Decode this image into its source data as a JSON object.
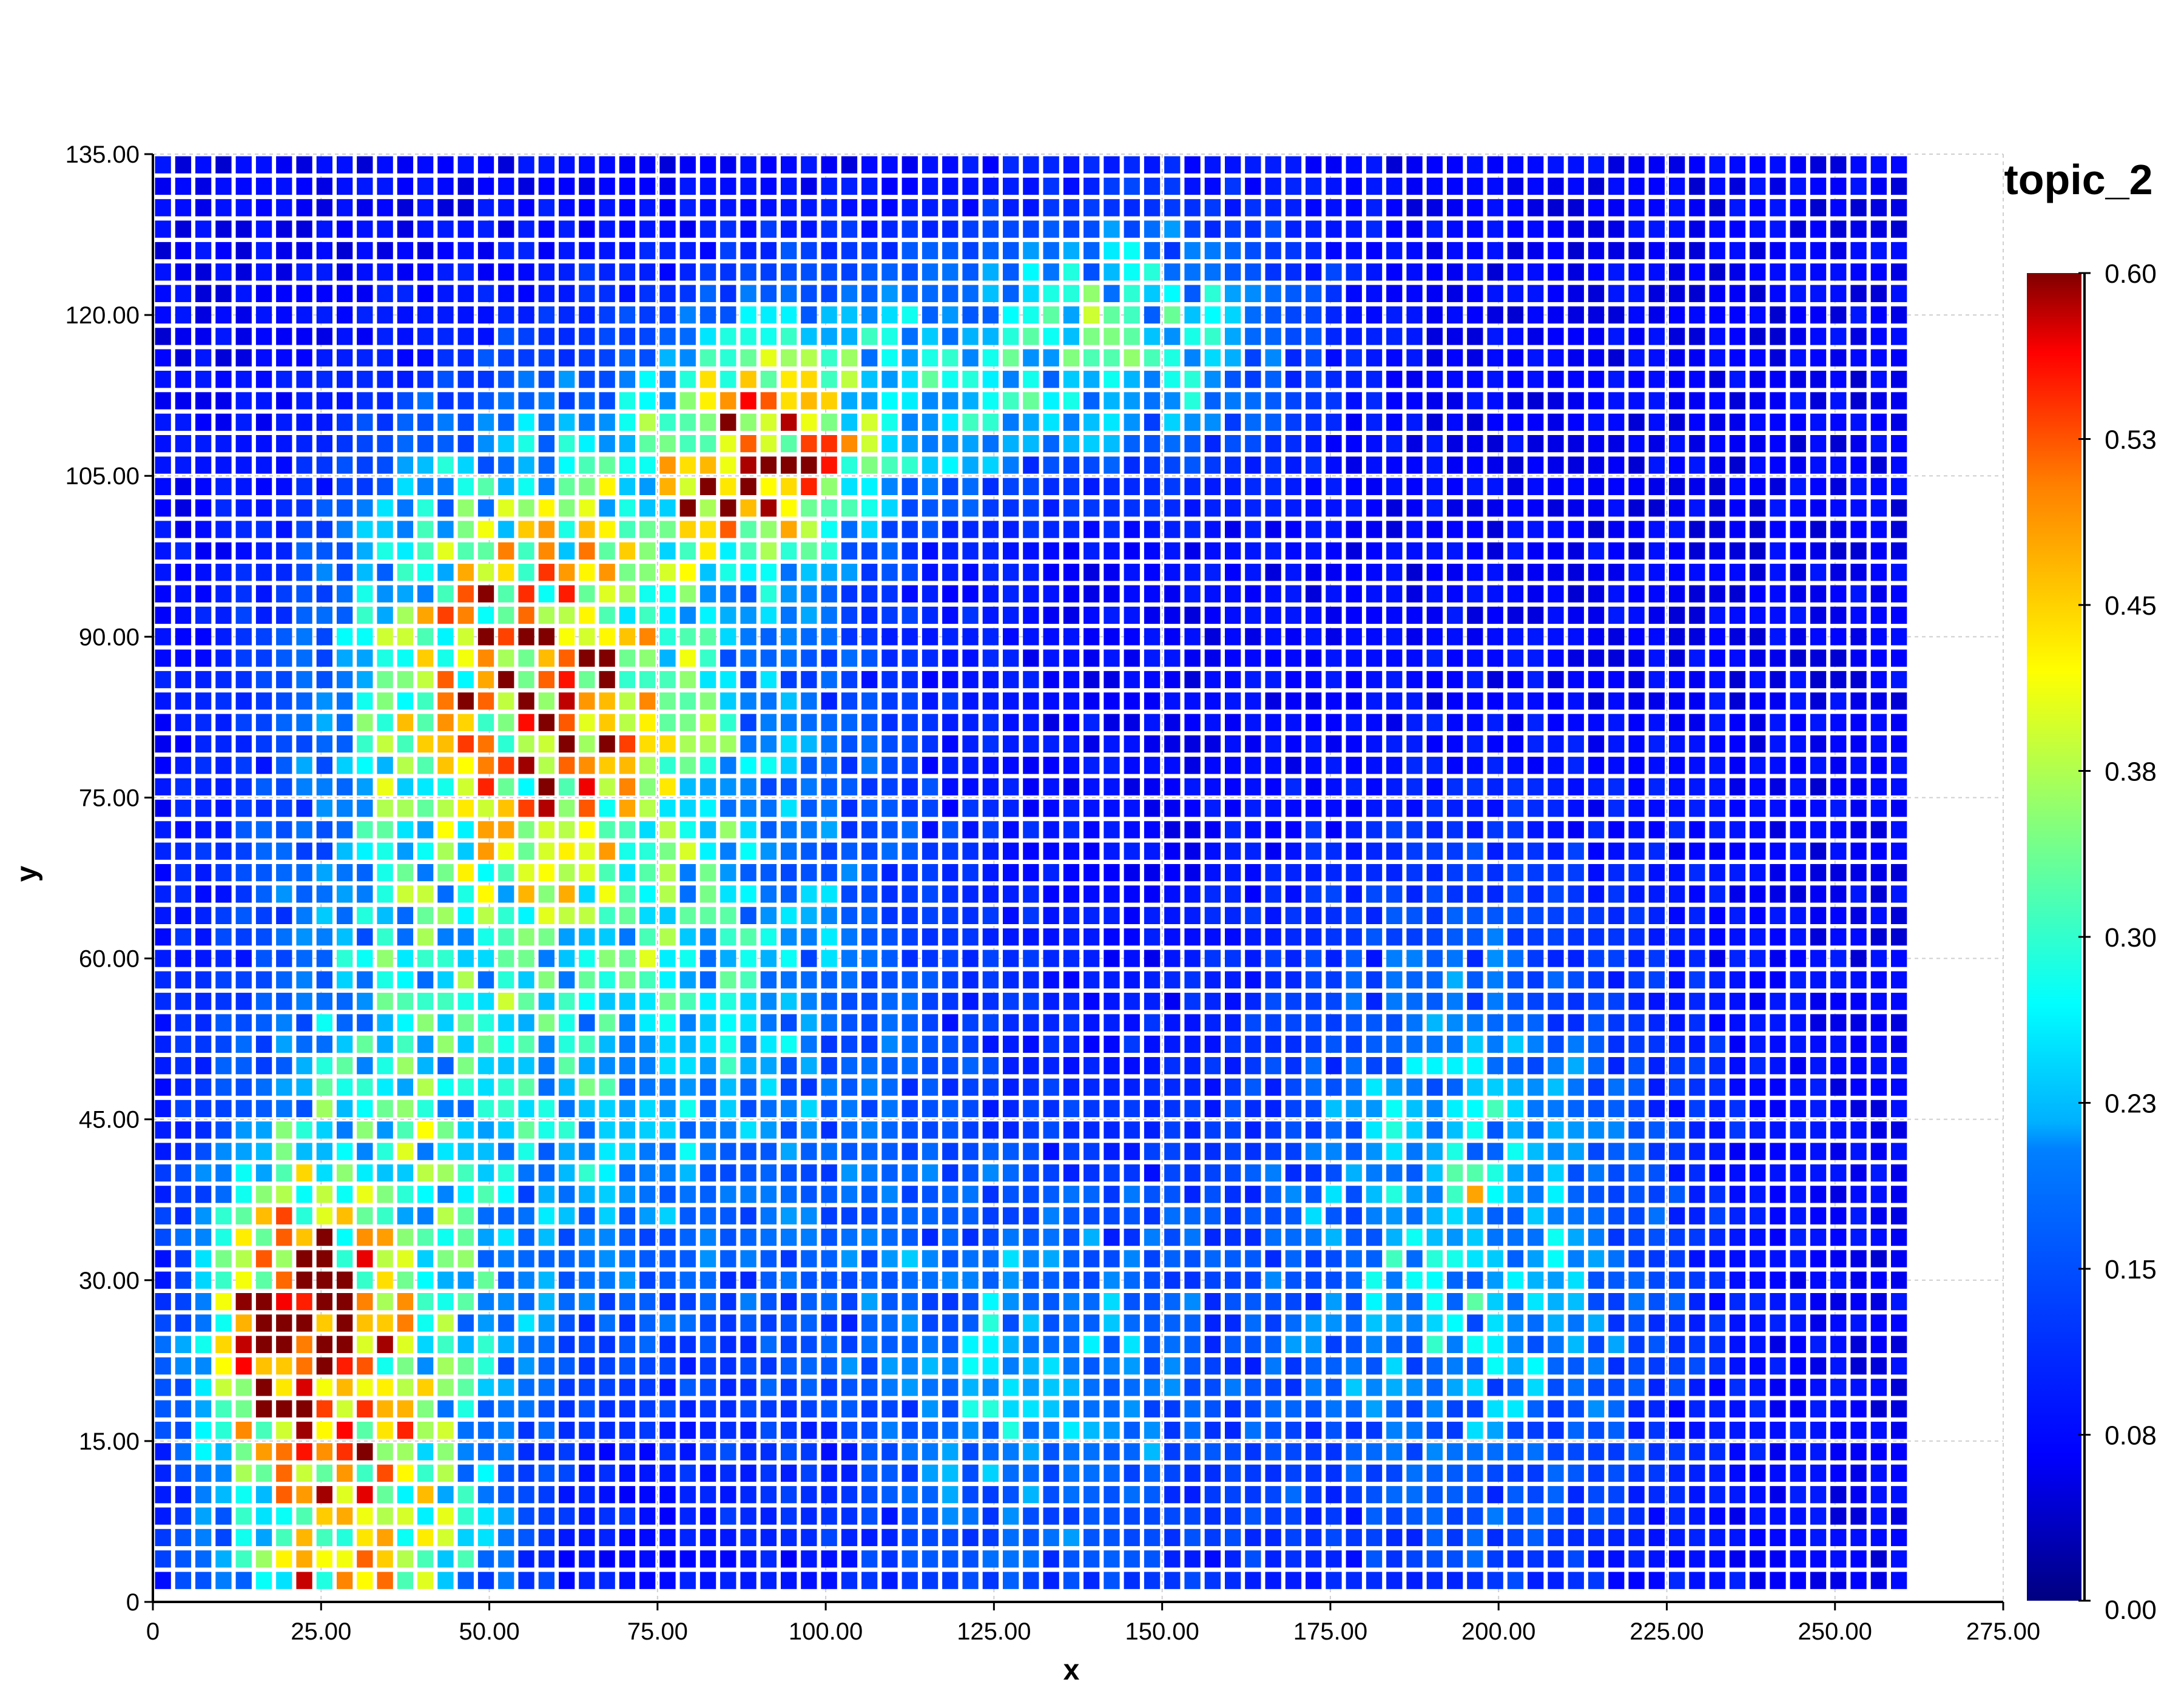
{
  "chart_data": {
    "type": "heatmap",
    "title": "",
    "xlabel": "x",
    "ylabel": "y",
    "xlim": [
      0,
      275
    ],
    "ylim": [
      0,
      135
    ],
    "x_ticks": [
      "0",
      "25.00",
      "50.00",
      "75.00",
      "100.00",
      "125.00",
      "150.00",
      "175.00",
      "200.00",
      "225.00",
      "250.00",
      "275.00"
    ],
    "y_ticks": [
      "0",
      "15.00",
      "30.00",
      "45.00",
      "60.00",
      "75.00",
      "90.00",
      "105.00",
      "120.00",
      "135.00"
    ],
    "grid": true,
    "colorbar": {
      "title": "topic_2",
      "min": 0.0,
      "max": 0.6,
      "ticks": [
        "0.00",
        "0.08",
        "0.15",
        "0.23",
        "0.30",
        "0.38",
        "0.45",
        "0.53",
        "0.60"
      ],
      "colormap": "jet",
      "colors": [
        "#000080",
        "#0000ff",
        "#0080ff",
        "#00ffff",
        "#80ff80",
        "#ffff00",
        "#ff8000",
        "#ff0000",
        "#800000"
      ]
    },
    "cells": {
      "x_start": 1.5,
      "x_step": 3.0,
      "columns": 87,
      "y_start": 2.0,
      "y_step": 2.0,
      "rows": 67,
      "value_range": [
        0.0,
        0.6
      ],
      "hotspots": [
        {
          "x": 30,
          "y": 8,
          "value": 0.34,
          "sx": 14,
          "sy": 30
        },
        {
          "x": 55,
          "y": 88,
          "value": 0.34,
          "sx": 18,
          "sy": 14
        },
        {
          "x": 88,
          "y": 105,
          "value": 0.3,
          "sx": 10,
          "sy": 6
        },
        {
          "x": 100,
          "y": 112,
          "value": 0.22,
          "sx": 18,
          "sy": 8
        },
        {
          "x": 145,
          "y": 118,
          "value": 0.22,
          "sx": 18,
          "sy": 8
        },
        {
          "x": 70,
          "y": 60,
          "value": 0.2,
          "sx": 30,
          "sy": 25
        },
        {
          "x": 195,
          "y": 35,
          "value": 0.18,
          "sx": 22,
          "sy": 22
        },
        {
          "x": 130,
          "y": 20,
          "value": 0.15,
          "sx": 20,
          "sy": 15
        },
        {
          "x": 20,
          "y": 25,
          "value": 0.38,
          "sx": 8,
          "sy": 8
        }
      ],
      "max_markers": [
        {
          "x": 22,
          "y": 2,
          "value": 0.58
        },
        {
          "x": 22,
          "y": 28,
          "value": 0.55
        },
        {
          "x": 55,
          "y": 82,
          "value": 0.56
        },
        {
          "x": 58,
          "y": 96,
          "value": 0.54
        },
        {
          "x": 88,
          "y": 108,
          "value": 0.52
        },
        {
          "x": 196,
          "y": 38,
          "value": 0.48
        }
      ]
    }
  }
}
